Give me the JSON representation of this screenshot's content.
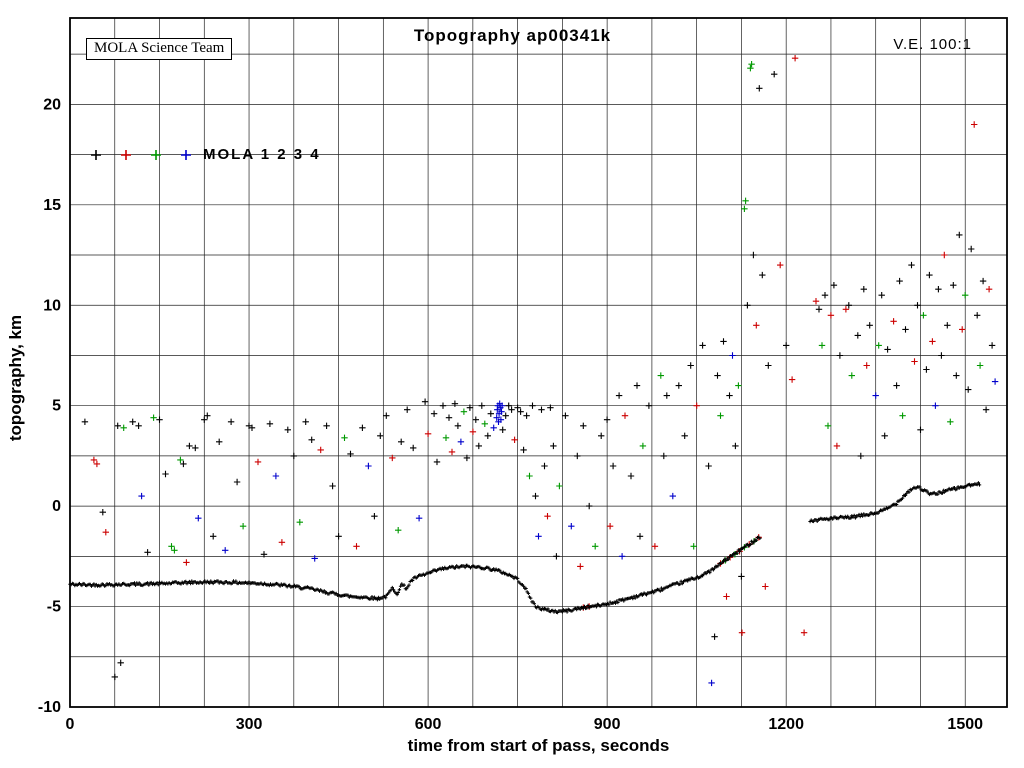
{
  "header": {
    "title": "Topography ap00341k",
    "ve_label": "V.E. 100:1",
    "credit": "MOLA Science Team"
  },
  "legend": {
    "label": "MOLA 1 2 3 4",
    "colors": [
      "#000000",
      "#cc0000",
      "#009900",
      "#0000cc"
    ],
    "marker": "plus"
  },
  "chart_data": {
    "type": "scatter",
    "title": "Topography ap00341k",
    "xlabel": "time from start of pass, seconds",
    "ylabel": "topography, km",
    "xlim": [
      0,
      1570
    ],
    "ylim": [
      -10,
      24.3
    ],
    "x_ticks": [
      0,
      300,
      600,
      900,
      1200,
      1500
    ],
    "y_ticks": [
      -10,
      -5,
      0,
      5,
      10,
      15,
      20
    ],
    "grid": {
      "on": true,
      "x_interval": 75,
      "y_interval": 2.5
    },
    "marker": "plus",
    "series_colors": {
      "k": "#000000",
      "r": "#cc0000",
      "g": "#009900",
      "b": "#0000cc"
    },
    "ground_track_segments": [
      [
        [
          0,
          -3.9
        ],
        [
          40,
          -3.92
        ],
        [
          80,
          -3.9
        ],
        [
          120,
          -3.88
        ],
        [
          160,
          -3.85
        ],
        [
          200,
          -3.8
        ],
        [
          240,
          -3.78
        ],
        [
          280,
          -3.8
        ],
        [
          320,
          -3.85
        ],
        [
          360,
          -3.95
        ],
        [
          400,
          -4.1
        ],
        [
          440,
          -4.35
        ],
        [
          470,
          -4.5
        ],
        [
          500,
          -4.55
        ],
        [
          515,
          -4.6
        ],
        [
          530,
          -4.5
        ],
        [
          540,
          -4.1
        ],
        [
          548,
          -4.35
        ],
        [
          556,
          -3.9
        ],
        [
          564,
          -4.1
        ],
        [
          572,
          -3.7
        ],
        [
          580,
          -3.55
        ],
        [
          600,
          -3.35
        ],
        [
          620,
          -3.15
        ],
        [
          640,
          -3.05
        ],
        [
          665,
          -3.0
        ],
        [
          690,
          -3.05
        ],
        [
          710,
          -3.15
        ],
        [
          730,
          -3.35
        ],
        [
          748,
          -3.6
        ],
        [
          760,
          -3.95
        ],
        [
          770,
          -4.5
        ],
        [
          780,
          -5.0
        ],
        [
          795,
          -5.15
        ],
        [
          815,
          -5.25
        ],
        [
          835,
          -5.2
        ],
        [
          860,
          -5.05
        ],
        [
          885,
          -4.95
        ],
        [
          910,
          -4.8
        ],
        [
          935,
          -4.6
        ],
        [
          960,
          -4.4
        ],
        [
          985,
          -4.2
        ],
        [
          1010,
          -3.95
        ],
        [
          1035,
          -3.7
        ],
        [
          1060,
          -3.45
        ],
        [
          1080,
          -3.1
        ],
        [
          1095,
          -2.75
        ],
        [
          1110,
          -2.45
        ],
        [
          1125,
          -2.15
        ],
        [
          1140,
          -1.85
        ],
        [
          1152,
          -1.6
        ],
        [
          1158,
          -1.5
        ]
      ],
      [
        [
          1240,
          -0.75
        ],
        [
          1260,
          -0.65
        ],
        [
          1285,
          -0.6
        ],
        [
          1310,
          -0.55
        ],
        [
          1330,
          -0.45
        ],
        [
          1350,
          -0.35
        ],
        [
          1368,
          -0.15
        ],
        [
          1385,
          0.15
        ],
        [
          1400,
          0.6
        ],
        [
          1412,
          0.9
        ],
        [
          1422,
          0.95
        ],
        [
          1432,
          0.75
        ],
        [
          1442,
          0.6
        ],
        [
          1452,
          0.62
        ],
        [
          1465,
          0.75
        ],
        [
          1480,
          0.85
        ],
        [
          1495,
          0.95
        ],
        [
          1510,
          1.05
        ],
        [
          1525,
          1.1
        ]
      ]
    ],
    "scatter": [
      [
        25,
        4.2,
        "k"
      ],
      [
        40,
        2.3,
        "r"
      ],
      [
        45,
        2.1,
        "r"
      ],
      [
        55,
        -0.3,
        "k"
      ],
      [
        60,
        -1.3,
        "r"
      ],
      [
        75,
        -8.5,
        "k"
      ],
      [
        80,
        4.0,
        "k"
      ],
      [
        85,
        -7.8,
        "k"
      ],
      [
        90,
        3.9,
        "g"
      ],
      [
        105,
        4.2,
        "k"
      ],
      [
        115,
        4.0,
        "k"
      ],
      [
        120,
        0.5,
        "b"
      ],
      [
        130,
        -2.3,
        "k"
      ],
      [
        140,
        4.4,
        "g"
      ],
      [
        150,
        4.3,
        "k"
      ],
      [
        160,
        1.6,
        "k"
      ],
      [
        170,
        -2.0,
        "g"
      ],
      [
        175,
        -2.2,
        "g"
      ],
      [
        185,
        2.3,
        "g"
      ],
      [
        190,
        2.1,
        "k"
      ],
      [
        195,
        -2.8,
        "r"
      ],
      [
        200,
        3.0,
        "k"
      ],
      [
        210,
        2.9,
        "k"
      ],
      [
        215,
        -0.6,
        "b"
      ],
      [
        225,
        4.3,
        "k"
      ],
      [
        230,
        4.5,
        "k"
      ],
      [
        240,
        -1.5,
        "k"
      ],
      [
        250,
        3.2,
        "k"
      ],
      [
        260,
        -2.2,
        "b"
      ],
      [
        270,
        4.2,
        "k"
      ],
      [
        280,
        1.2,
        "k"
      ],
      [
        290,
        -1.0,
        "g"
      ],
      [
        300,
        4.0,
        "k"
      ],
      [
        305,
        3.9,
        "k"
      ],
      [
        315,
        2.2,
        "r"
      ],
      [
        325,
        -2.4,
        "k"
      ],
      [
        335,
        4.1,
        "k"
      ],
      [
        345,
        1.5,
        "b"
      ],
      [
        355,
        -1.8,
        "r"
      ],
      [
        365,
        3.8,
        "k"
      ],
      [
        375,
        2.5,
        "k"
      ],
      [
        385,
        -0.8,
        "g"
      ],
      [
        395,
        4.2,
        "k"
      ],
      [
        405,
        3.3,
        "k"
      ],
      [
        410,
        -2.6,
        "b"
      ],
      [
        420,
        2.8,
        "r"
      ],
      [
        430,
        4.0,
        "k"
      ],
      [
        440,
        1.0,
        "k"
      ],
      [
        450,
        -1.5,
        "k"
      ],
      [
        460,
        3.4,
        "g"
      ],
      [
        470,
        2.6,
        "k"
      ],
      [
        480,
        -2.0,
        "r"
      ],
      [
        490,
        3.9,
        "k"
      ],
      [
        500,
        2.0,
        "b"
      ],
      [
        510,
        -0.5,
        "k"
      ],
      [
        520,
        3.5,
        "k"
      ],
      [
        530,
        4.5,
        "k"
      ],
      [
        540,
        2.4,
        "r"
      ],
      [
        550,
        -1.2,
        "g"
      ],
      [
        555,
        3.2,
        "k"
      ],
      [
        565,
        4.8,
        "k"
      ],
      [
        575,
        2.9,
        "k"
      ],
      [
        585,
        -0.6,
        "b"
      ],
      [
        595,
        5.2,
        "k"
      ],
      [
        600,
        3.6,
        "r"
      ],
      [
        610,
        4.6,
        "k"
      ],
      [
        615,
        2.2,
        "k"
      ],
      [
        625,
        5.0,
        "k"
      ],
      [
        630,
        3.4,
        "g"
      ],
      [
        635,
        4.4,
        "k"
      ],
      [
        640,
        2.7,
        "r"
      ],
      [
        645,
        5.1,
        "k"
      ],
      [
        650,
        4.0,
        "k"
      ],
      [
        655,
        3.2,
        "b"
      ],
      [
        660,
        4.7,
        "g"
      ],
      [
        665,
        2.4,
        "k"
      ],
      [
        670,
        4.9,
        "k"
      ],
      [
        675,
        3.7,
        "r"
      ],
      [
        680,
        4.3,
        "k"
      ],
      [
        685,
        3.0,
        "k"
      ],
      [
        690,
        5.0,
        "k"
      ],
      [
        695,
        4.1,
        "g"
      ],
      [
        700,
        3.5,
        "k"
      ],
      [
        705,
        4.6,
        "k"
      ],
      [
        710,
        3.9,
        "b"
      ],
      [
        715,
        4.4,
        "b"
      ],
      [
        716,
        4.8,
        "b"
      ],
      [
        717,
        5.0,
        "b"
      ],
      [
        718,
        4.2,
        "b"
      ],
      [
        719,
        4.6,
        "b"
      ],
      [
        720,
        5.1,
        "b"
      ],
      [
        721,
        4.9,
        "b"
      ],
      [
        722,
        4.3,
        "b"
      ],
      [
        723,
        4.7,
        "b"
      ],
      [
        724,
        5.0,
        "b"
      ],
      [
        725,
        3.8,
        "k"
      ],
      [
        730,
        4.5,
        "k"
      ],
      [
        735,
        5.0,
        "k"
      ],
      [
        740,
        4.8,
        "k"
      ],
      [
        745,
        3.3,
        "r"
      ],
      [
        750,
        4.9,
        "k"
      ],
      [
        755,
        4.7,
        "k"
      ],
      [
        760,
        2.8,
        "k"
      ],
      [
        765,
        4.5,
        "k"
      ],
      [
        770,
        1.5,
        "g"
      ],
      [
        775,
        5.0,
        "k"
      ],
      [
        780,
        0.5,
        "k"
      ],
      [
        785,
        -1.5,
        "b"
      ],
      [
        790,
        4.8,
        "k"
      ],
      [
        795,
        2.0,
        "k"
      ],
      [
        800,
        -0.5,
        "r"
      ],
      [
        805,
        4.9,
        "k"
      ],
      [
        810,
        3.0,
        "k"
      ],
      [
        815,
        -2.5,
        "k"
      ],
      [
        820,
        1.0,
        "g"
      ],
      [
        830,
        4.5,
        "k"
      ],
      [
        840,
        -1.0,
        "b"
      ],
      [
        850,
        2.5,
        "k"
      ],
      [
        855,
        -3.0,
        "r"
      ],
      [
        860,
        4.0,
        "k"
      ],
      [
        860,
        -5.05,
        "r"
      ],
      [
        870,
        0.0,
        "k"
      ],
      [
        870,
        -5.0,
        "r"
      ],
      [
        880,
        -2.0,
        "g"
      ],
      [
        890,
        3.5,
        "k"
      ],
      [
        900,
        4.3,
        "k"
      ],
      [
        905,
        -1.0,
        "r"
      ],
      [
        910,
        2.0,
        "k"
      ],
      [
        920,
        5.5,
        "k"
      ],
      [
        925,
        -2.5,
        "b"
      ],
      [
        930,
        4.5,
        "r"
      ],
      [
        940,
        1.5,
        "k"
      ],
      [
        950,
        6.0,
        "k"
      ],
      [
        955,
        -1.5,
        "k"
      ],
      [
        960,
        3.0,
        "g"
      ],
      [
        970,
        5.0,
        "k"
      ],
      [
        980,
        -2.0,
        "r"
      ],
      [
        990,
        6.5,
        "g"
      ],
      [
        995,
        2.5,
        "k"
      ],
      [
        1000,
        5.5,
        "k"
      ],
      [
        1010,
        0.5,
        "b"
      ],
      [
        1020,
        6.0,
        "k"
      ],
      [
        1030,
        3.5,
        "k"
      ],
      [
        1040,
        7.0,
        "k"
      ],
      [
        1045,
        -2.0,
        "g"
      ],
      [
        1050,
        5.0,
        "r"
      ],
      [
        1060,
        8.0,
        "k"
      ],
      [
        1070,
        2.0,
        "k"
      ],
      [
        1075,
        -8.8,
        "b"
      ],
      [
        1080,
        -6.5,
        "k"
      ],
      [
        1085,
        6.5,
        "k"
      ],
      [
        1090,
        4.5,
        "g"
      ],
      [
        1095,
        8.2,
        "k"
      ],
      [
        1100,
        -4.5,
        "r"
      ],
      [
        1105,
        5.5,
        "k"
      ],
      [
        1110,
        7.5,
        "b"
      ],
      [
        1115,
        3.0,
        "k"
      ],
      [
        1120,
        6.0,
        "g"
      ],
      [
        1125,
        -3.5,
        "k"
      ],
      [
        1126,
        -6.3,
        "r"
      ],
      [
        1090,
        -2.85,
        "r"
      ],
      [
        1098,
        -2.7,
        "g"
      ],
      [
        1106,
        -2.55,
        "r"
      ],
      [
        1114,
        -2.4,
        "g"
      ],
      [
        1122,
        -2.25,
        "r"
      ],
      [
        1130,
        -2.05,
        "g"
      ],
      [
        1138,
        -1.9,
        "r"
      ],
      [
        1146,
        -1.75,
        "g"
      ],
      [
        1154,
        -1.55,
        "r"
      ],
      [
        1130,
        14.8,
        "g"
      ],
      [
        1132,
        15.2,
        "g"
      ],
      [
        1135,
        10.0,
        "k"
      ],
      [
        1140,
        21.8,
        "g"
      ],
      [
        1142,
        22.0,
        "g"
      ],
      [
        1145,
        12.5,
        "k"
      ],
      [
        1150,
        9.0,
        "r"
      ],
      [
        1155,
        20.8,
        "k"
      ],
      [
        1160,
        11.5,
        "k"
      ],
      [
        1165,
        -4.0,
        "r"
      ],
      [
        1170,
        7.0,
        "k"
      ],
      [
        1180,
        21.5,
        "k"
      ],
      [
        1190,
        12.0,
        "r"
      ],
      [
        1200,
        8.0,
        "k"
      ],
      [
        1210,
        6.3,
        "r"
      ],
      [
        1215,
        22.3,
        "r"
      ],
      [
        1230,
        -6.3,
        "r"
      ],
      [
        1250,
        10.2,
        "r"
      ],
      [
        1255,
        9.8,
        "k"
      ],
      [
        1260,
        8.0,
        "g"
      ],
      [
        1265,
        10.5,
        "k"
      ],
      [
        1270,
        4.0,
        "g"
      ],
      [
        1275,
        9.5,
        "r"
      ],
      [
        1280,
        11.0,
        "k"
      ],
      [
        1285,
        3.0,
        "r"
      ],
      [
        1290,
        7.5,
        "k"
      ],
      [
        1300,
        9.8,
        "r"
      ],
      [
        1305,
        10.0,
        "k"
      ],
      [
        1310,
        6.5,
        "g"
      ],
      [
        1320,
        8.5,
        "k"
      ],
      [
        1325,
        2.5,
        "k"
      ],
      [
        1330,
        10.8,
        "k"
      ],
      [
        1335,
        7.0,
        "r"
      ],
      [
        1340,
        9.0,
        "k"
      ],
      [
        1350,
        5.5,
        "b"
      ],
      [
        1355,
        8.0,
        "g"
      ],
      [
        1360,
        10.5,
        "k"
      ],
      [
        1365,
        3.5,
        "k"
      ],
      [
        1370,
        7.8,
        "k"
      ],
      [
        1380,
        9.2,
        "r"
      ],
      [
        1385,
        6.0,
        "k"
      ],
      [
        1390,
        11.2,
        "k"
      ],
      [
        1395,
        4.5,
        "g"
      ],
      [
        1400,
        8.8,
        "k"
      ],
      [
        1410,
        12.0,
        "k"
      ],
      [
        1415,
        7.2,
        "r"
      ],
      [
        1420,
        10.0,
        "k"
      ],
      [
        1425,
        3.8,
        "k"
      ],
      [
        1430,
        9.5,
        "g"
      ],
      [
        1435,
        6.8,
        "k"
      ],
      [
        1440,
        11.5,
        "k"
      ],
      [
        1445,
        8.2,
        "r"
      ],
      [
        1450,
        5.0,
        "b"
      ],
      [
        1455,
        10.8,
        "k"
      ],
      [
        1460,
        7.5,
        "k"
      ],
      [
        1465,
        12.5,
        "r"
      ],
      [
        1470,
        9.0,
        "k"
      ],
      [
        1475,
        4.2,
        "g"
      ],
      [
        1480,
        11.0,
        "k"
      ],
      [
        1485,
        6.5,
        "k"
      ],
      [
        1490,
        13.5,
        "k"
      ],
      [
        1495,
        8.8,
        "r"
      ],
      [
        1500,
        10.5,
        "g"
      ],
      [
        1505,
        5.8,
        "k"
      ],
      [
        1510,
        12.8,
        "k"
      ],
      [
        1515,
        19.0,
        "r"
      ],
      [
        1520,
        9.5,
        "k"
      ],
      [
        1525,
        7.0,
        "g"
      ],
      [
        1530,
        11.2,
        "k"
      ],
      [
        1535,
        4.8,
        "k"
      ],
      [
        1540,
        10.8,
        "r"
      ],
      [
        1545,
        8.0,
        "k"
      ],
      [
        1550,
        6.2,
        "b"
      ]
    ]
  }
}
